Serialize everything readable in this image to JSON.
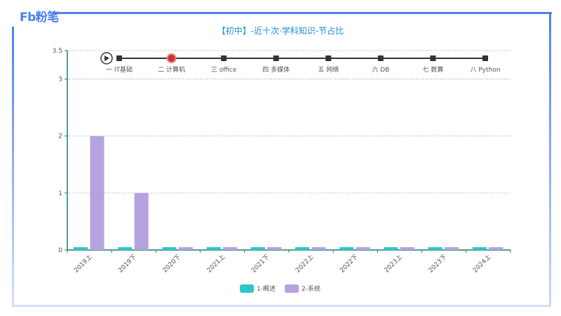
{
  "brand": {
    "logo_text": "Fb粉笔"
  },
  "colors": {
    "series1": "#2ec7c9",
    "series2": "#b6a2de",
    "title": "#1a8fd6",
    "frame": "#4f7ef0",
    "timeline_active": "#d0312d"
  },
  "timeline": {
    "play_icon": "play-icon",
    "active_index": 1,
    "items": [
      "一 IT基础",
      "二 计算机",
      "三 office",
      "四 多媒体",
      "五 网络",
      "六 DB",
      "七 数算",
      "八 Python"
    ]
  },
  "chart_data": {
    "type": "bar",
    "title": "【初中】-近十次·学科知识-节占比",
    "categories": [
      "2019上",
      "2019下",
      "2020下",
      "2021上",
      "2021下",
      "2022上",
      "2022下",
      "2023上",
      "2023下",
      "2024上"
    ],
    "series": [
      {
        "name": "1-概述",
        "values": [
          0,
          0,
          0,
          0,
          0,
          0,
          0,
          0,
          0,
          0
        ]
      },
      {
        "name": "2-系统",
        "values": [
          2,
          1,
          0,
          0,
          0,
          0,
          0,
          0,
          0,
          0
        ]
      }
    ],
    "ylim": [
      0,
      3.5
    ],
    "yticks": [
      "0",
      "1",
      "2",
      "3",
      "3.5"
    ],
    "grid": true,
    "legend_position": "bottom"
  }
}
